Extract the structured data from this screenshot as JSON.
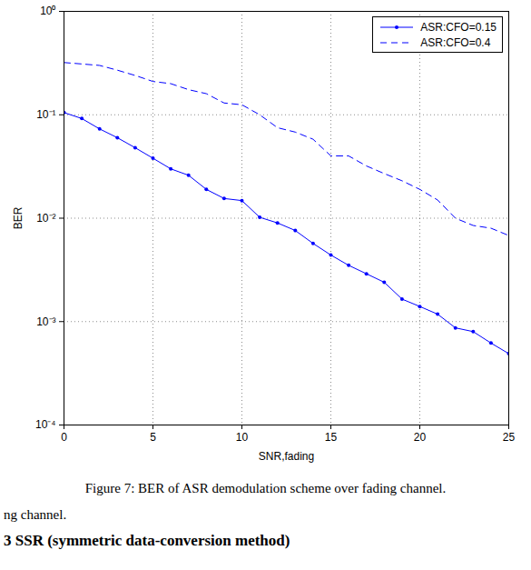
{
  "chart_data": {
    "type": "line",
    "caption": "Figure 7: BER of ASR demodulation scheme over fading channel.",
    "x_label": "SNR,fading",
    "y_label": "BER",
    "x": [
      0,
      1,
      2,
      3,
      4,
      5,
      6,
      7,
      8,
      9,
      10,
      11,
      12,
      13,
      14,
      15,
      16,
      17,
      18,
      19,
      20,
      21,
      22,
      23,
      24,
      25
    ],
    "series": [
      {
        "name": "ASR:CFO=0.15",
        "color": "#0000ff",
        "marker": "dot",
        "line_style": "solid",
        "values": [
          0.105,
          0.092,
          0.073,
          0.06,
          0.048,
          0.038,
          0.03,
          0.026,
          0.019,
          0.0155,
          0.0148,
          0.0102,
          0.009,
          0.0076,
          0.0057,
          0.0044,
          0.0035,
          0.0029,
          0.0024,
          0.00165,
          0.0014,
          0.00118,
          0.00087,
          0.0008,
          0.00062,
          0.00049
        ]
      },
      {
        "name": "ASR:CFO=0.4",
        "color": "#0000ff",
        "marker": "none",
        "line_style": "dashed",
        "values": [
          0.32,
          0.31,
          0.3,
          0.27,
          0.24,
          0.21,
          0.2,
          0.175,
          0.16,
          0.13,
          0.125,
          0.1,
          0.075,
          0.068,
          0.058,
          0.04,
          0.04,
          0.032,
          0.027,
          0.023,
          0.019,
          0.015,
          0.01,
          0.0085,
          0.008,
          0.0068
        ]
      }
    ],
    "xlim": [
      0,
      25
    ],
    "xticks": [
      0,
      5,
      10,
      15,
      20,
      25
    ],
    "ylim": [
      0.0001,
      1
    ],
    "yticks": [
      {
        "value": 0.0001,
        "label": "10⁻⁴"
      },
      {
        "value": 0.001,
        "label": "10⁻³"
      },
      {
        "value": 0.01,
        "label": "10⁻²"
      },
      {
        "value": 0.1,
        "label": "10⁻¹"
      },
      {
        "value": 1,
        "label": "10⁰"
      }
    ],
    "log": "y",
    "grid": true,
    "legend": "top-right"
  },
  "page_text": [
    "ng channel.",
    "3 SSR (symmetric data-conversion method)"
  ]
}
